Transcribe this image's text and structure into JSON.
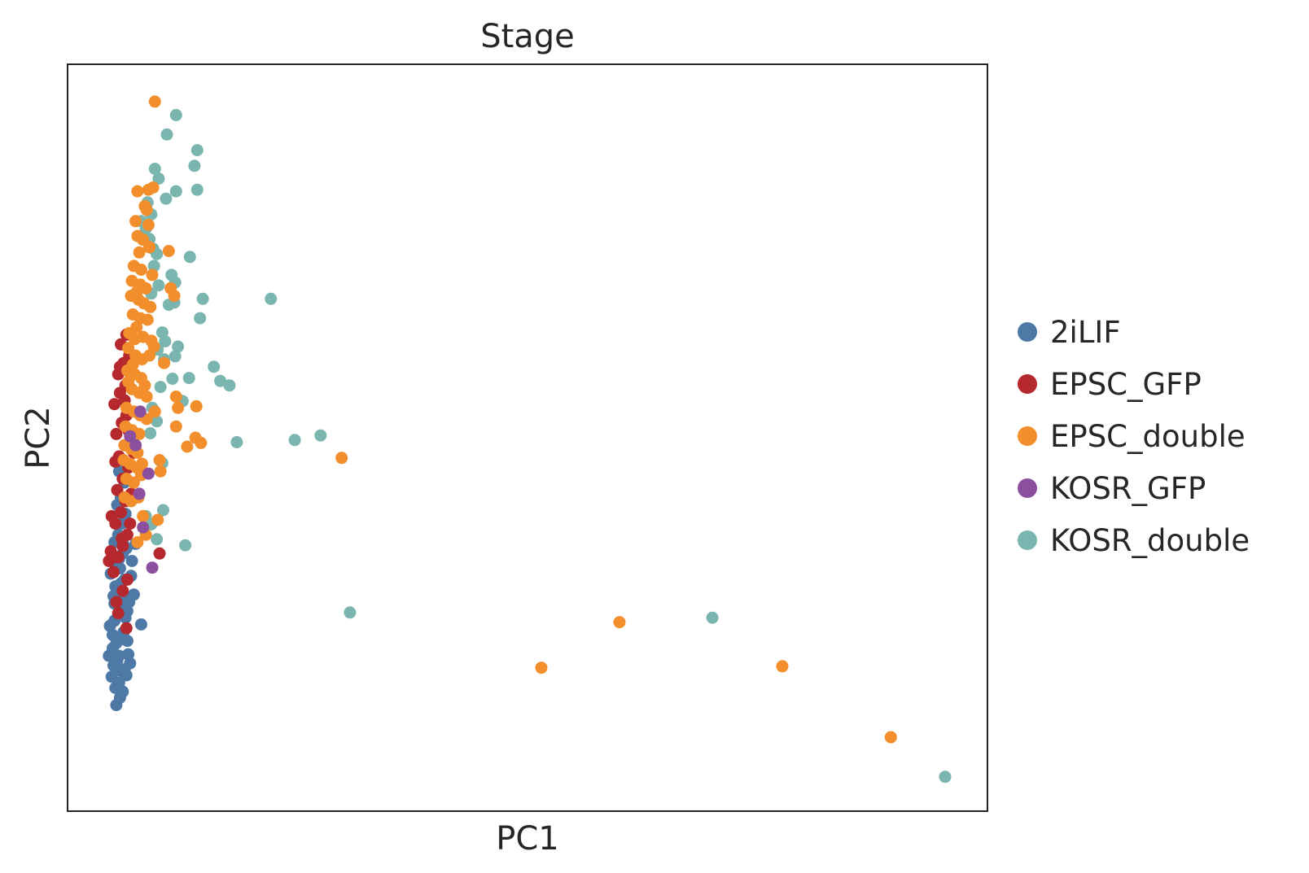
{
  "chart_data": {
    "type": "scatter",
    "title": "Stage",
    "xlabel": "PC1",
    "ylabel": "PC2",
    "xlim": [
      0,
      100
    ],
    "ylim": [
      0,
      100
    ],
    "ticks_visible": false,
    "grid": false,
    "legend_placement": "right-outside",
    "series": [
      {
        "name": "2iLIF",
        "color": "#4e79a7",
        "points": [
          [
            5.2,
            16.5
          ],
          [
            5.6,
            17.2
          ],
          [
            6.0,
            16.0
          ],
          [
            4.8,
            18.0
          ],
          [
            5.0,
            19.5
          ],
          [
            5.4,
            20.2
          ],
          [
            5.8,
            18.8
          ],
          [
            6.2,
            19.0
          ],
          [
            6.6,
            21.0
          ],
          [
            4.9,
            21.8
          ],
          [
            5.3,
            22.5
          ],
          [
            5.7,
            23.0
          ],
          [
            6.1,
            24.0
          ],
          [
            6.5,
            22.8
          ],
          [
            4.6,
            24.8
          ],
          [
            5.1,
            25.5
          ],
          [
            5.5,
            26.2
          ],
          [
            5.9,
            27.0
          ],
          [
            6.3,
            25.9
          ],
          [
            6.7,
            28.0
          ],
          [
            5.0,
            28.8
          ],
          [
            5.4,
            29.5
          ],
          [
            5.8,
            30.5
          ],
          [
            6.2,
            31.0
          ],
          [
            4.7,
            31.8
          ],
          [
            5.2,
            33.0
          ],
          [
            5.6,
            33.8
          ],
          [
            6.0,
            34.5
          ],
          [
            6.4,
            35.2
          ],
          [
            5.1,
            36.0
          ],
          [
            5.5,
            37.0
          ],
          [
            5.9,
            38.5
          ],
          [
            6.3,
            39.8
          ],
          [
            5.4,
            41.0
          ],
          [
            5.8,
            42.0
          ],
          [
            6.2,
            44.0
          ],
          [
            5.6,
            45.5
          ],
          [
            6.0,
            47.0
          ],
          [
            7.0,
            33.5
          ],
          [
            7.4,
            35.8
          ],
          [
            8.0,
            25.0
          ],
          [
            4.5,
            20.8
          ],
          [
            6.8,
            19.8
          ],
          [
            6.4,
            18.2
          ],
          [
            5.7,
            15.2
          ],
          [
            5.3,
            14.2
          ],
          [
            7.2,
            29.0
          ],
          [
            6.9,
            31.5
          ],
          [
            5.1,
            27.8
          ],
          [
            5.7,
            32.5
          ],
          [
            6.1,
            28.6
          ],
          [
            4.9,
            23.6
          ],
          [
            6.5,
            26.8
          ],
          [
            5.6,
            20.8
          ],
          [
            6.0,
            35.9
          ],
          [
            5.2,
            30.1
          ]
        ]
      },
      {
        "name": "EPSC_GFP",
        "color": "#b5282e",
        "points": [
          [
            5.0,
            32.0
          ],
          [
            5.5,
            34.0
          ],
          [
            6.0,
            35.5
          ],
          [
            6.5,
            37.0
          ],
          [
            5.2,
            38.5
          ],
          [
            5.8,
            40.0
          ],
          [
            6.3,
            41.5
          ],
          [
            5.4,
            43.0
          ],
          [
            6.0,
            44.5
          ],
          [
            6.6,
            46.0
          ],
          [
            5.6,
            47.5
          ],
          [
            6.2,
            49.0
          ],
          [
            5.3,
            50.5
          ],
          [
            5.9,
            52.0
          ],
          [
            6.4,
            53.0
          ],
          [
            5.1,
            54.5
          ],
          [
            5.7,
            56.0
          ],
          [
            6.3,
            57.0
          ],
          [
            5.5,
            58.5
          ],
          [
            6.1,
            60.0
          ],
          [
            6.7,
            61.0
          ],
          [
            5.8,
            62.5
          ],
          [
            6.4,
            63.8
          ],
          [
            5.2,
            46.8
          ],
          [
            4.8,
            39.5
          ],
          [
            6.9,
            42.5
          ],
          [
            7.2,
            48.0
          ],
          [
            6.0,
            29.5
          ],
          [
            5.5,
            26.5
          ],
          [
            6.4,
            24.5
          ],
          [
            4.7,
            34.8
          ],
          [
            6.8,
            38.5
          ],
          [
            5.9,
            36.5
          ],
          [
            10.0,
            34.5
          ],
          [
            4.5,
            33.5
          ],
          [
            6.5,
            31.0
          ],
          [
            5.3,
            28.0
          ],
          [
            6.2,
            55.0
          ],
          [
            6.6,
            51.0
          ],
          [
            5.7,
            59.5
          ]
        ]
      },
      {
        "name": "EPSC_double",
        "color": "#f28e2b",
        "points": [
          [
            9.5,
            95.0
          ],
          [
            7.6,
            83.0
          ],
          [
            8.8,
            83.2
          ],
          [
            9.3,
            83.5
          ],
          [
            8.4,
            81.0
          ],
          [
            7.4,
            79.0
          ],
          [
            8.6,
            80.5
          ],
          [
            7.6,
            77.0
          ],
          [
            8.2,
            76.5
          ],
          [
            7.8,
            74.8
          ],
          [
            8.9,
            75.5
          ],
          [
            7.2,
            73.0
          ],
          [
            8.0,
            72.5
          ],
          [
            11.0,
            75.0
          ],
          [
            7.0,
            71.0
          ],
          [
            7.9,
            70.5
          ],
          [
            8.5,
            70.0
          ],
          [
            9.2,
            71.8
          ],
          [
            6.9,
            69.0
          ],
          [
            7.7,
            68.5
          ],
          [
            8.3,
            68.0
          ],
          [
            9.0,
            67.5
          ],
          [
            11.2,
            70.0
          ],
          [
            11.6,
            69.0
          ],
          [
            7.1,
            66.5
          ],
          [
            7.9,
            66.0
          ],
          [
            8.7,
            65.8
          ],
          [
            6.7,
            64.0
          ],
          [
            7.5,
            64.8
          ],
          [
            8.2,
            63.5
          ],
          [
            9.1,
            63.0
          ],
          [
            6.6,
            62.0
          ],
          [
            7.4,
            61.0
          ],
          [
            8.1,
            60.5
          ],
          [
            8.9,
            61.0
          ],
          [
            6.5,
            59.0
          ],
          [
            7.3,
            58.5
          ],
          [
            8.0,
            58.0
          ],
          [
            10.5,
            60.0
          ],
          [
            7.0,
            56.5
          ],
          [
            7.8,
            56.0
          ],
          [
            8.6,
            55.5
          ],
          [
            12.0,
            54.0
          ],
          [
            6.4,
            54.0
          ],
          [
            7.2,
            53.5
          ],
          [
            7.9,
            53.0
          ],
          [
            9.5,
            53.5
          ],
          [
            6.3,
            51.5
          ],
          [
            7.0,
            51.0
          ],
          [
            7.8,
            50.5
          ],
          [
            11.8,
            51.5
          ],
          [
            6.2,
            49.0
          ],
          [
            6.9,
            48.5
          ],
          [
            7.6,
            48.0
          ],
          [
            8.6,
            52.5
          ],
          [
            6.1,
            47.0
          ],
          [
            6.8,
            46.5
          ],
          [
            7.5,
            46.0
          ],
          [
            10.0,
            47.0
          ],
          [
            6.4,
            44.5
          ],
          [
            7.2,
            44.0
          ],
          [
            8.0,
            45.0
          ],
          [
            6.2,
            42.0
          ],
          [
            6.9,
            41.5
          ],
          [
            7.7,
            42.0
          ],
          [
            8.2,
            39.5
          ],
          [
            9.8,
            39.0
          ],
          [
            8.5,
            37.0
          ],
          [
            7.6,
            36.0
          ],
          [
            10.1,
            45.5
          ],
          [
            11.8,
            55.5
          ],
          [
            14.0,
            54.2
          ],
          [
            13.0,
            48.8
          ],
          [
            13.9,
            50.0
          ],
          [
            14.5,
            49.3
          ],
          [
            29.8,
            47.3
          ],
          [
            51.5,
            19.2
          ],
          [
            60.0,
            25.3
          ],
          [
            77.7,
            19.4
          ],
          [
            89.5,
            9.9
          ],
          [
            7.3,
            63.2
          ],
          [
            8.4,
            57.0
          ],
          [
            6.6,
            57.5
          ],
          [
            7.5,
            69.5
          ],
          [
            8.8,
            78.5
          ],
          [
            9.4,
            62.2
          ],
          [
            7.1,
            59.8
          ],
          [
            8.1,
            46.5
          ]
        ]
      },
      {
        "name": "KOSR_GFP",
        "color": "#8a4f9e",
        "points": [
          [
            9.2,
            32.6
          ],
          [
            8.8,
            45.2
          ],
          [
            7.8,
            42.5
          ],
          [
            8.2,
            38.0
          ],
          [
            7.4,
            49.0
          ],
          [
            7.9,
            53.5
          ],
          [
            6.8,
            50.2
          ]
        ]
      },
      {
        "name": "KOSR_double",
        "color": "#7bb5b0",
        "points": [
          [
            11.8,
            93.2
          ],
          [
            10.8,
            90.6
          ],
          [
            14.1,
            88.5
          ],
          [
            13.8,
            86.4
          ],
          [
            9.5,
            86.0
          ],
          [
            9.9,
            84.7
          ],
          [
            11.8,
            83.0
          ],
          [
            14.1,
            83.2
          ],
          [
            10.7,
            82.0
          ],
          [
            8.7,
            81.5
          ],
          [
            9.1,
            79.9
          ],
          [
            8.0,
            79.0
          ],
          [
            8.5,
            78.0
          ],
          [
            8.9,
            76.6
          ],
          [
            9.3,
            75.3
          ],
          [
            9.7,
            74.6
          ],
          [
            13.3,
            74.2
          ],
          [
            9.4,
            73.0
          ],
          [
            11.3,
            71.8
          ],
          [
            9.9,
            70.4
          ],
          [
            11.7,
            70.8
          ],
          [
            9.1,
            69.3
          ],
          [
            14.7,
            68.6
          ],
          [
            22.1,
            68.6
          ],
          [
            11.0,
            67.8
          ],
          [
            11.6,
            68.1
          ],
          [
            14.4,
            66.0
          ],
          [
            10.3,
            64.1
          ],
          [
            10.6,
            62.9
          ],
          [
            12.0,
            62.2
          ],
          [
            9.8,
            61.8
          ],
          [
            11.7,
            60.9
          ],
          [
            15.9,
            59.5
          ],
          [
            13.2,
            58.0
          ],
          [
            16.6,
            57.6
          ],
          [
            17.6,
            57.0
          ],
          [
            10.5,
            60.5
          ],
          [
            11.4,
            57.9
          ],
          [
            10.1,
            56.8
          ],
          [
            12.5,
            54.9
          ],
          [
            9.2,
            54.0
          ],
          [
            9.7,
            52.2
          ],
          [
            9.0,
            50.6
          ],
          [
            18.4,
            49.4
          ],
          [
            24.7,
            49.7
          ],
          [
            27.5,
            50.3
          ],
          [
            10.3,
            46.6
          ],
          [
            10.4,
            40.3
          ],
          [
            9.1,
            38.4
          ],
          [
            9.7,
            36.4
          ],
          [
            8.5,
            39.5
          ],
          [
            12.8,
            35.6
          ],
          [
            30.7,
            26.6
          ],
          [
            70.1,
            25.9
          ],
          [
            95.4,
            4.6
          ]
        ]
      }
    ]
  }
}
